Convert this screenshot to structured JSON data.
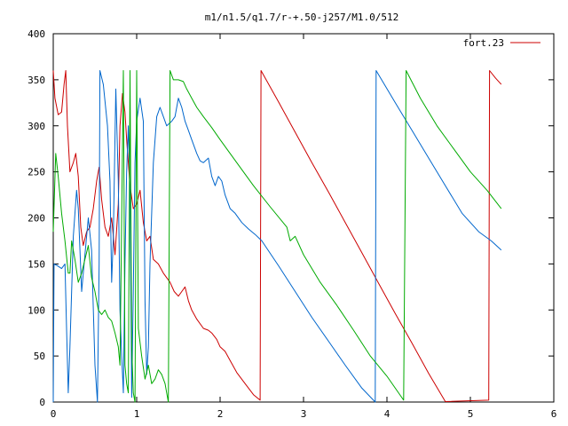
{
  "chart_data": {
    "type": "line",
    "title": "m1/n1.5/q1.7/r-+.50-j257/M1.0/512",
    "xlabel": "",
    "ylabel": "",
    "xlim": [
      0,
      6
    ],
    "ylim": [
      0,
      400
    ],
    "xticks": [
      0,
      1,
      2,
      3,
      4,
      5,
      6
    ],
    "yticks": [
      0,
      50,
      100,
      150,
      200,
      250,
      300,
      350,
      400
    ],
    "grid": false,
    "legend": {
      "position": "top-right",
      "entries": [
        "fort.23"
      ]
    },
    "series": [
      {
        "name": "fort.23",
        "color": "#cc0000",
        "points": [
          [
            0,
            360
          ],
          [
            0.02,
            330
          ],
          [
            0.06,
            312
          ],
          [
            0.1,
            315
          ],
          [
            0.13,
            345
          ],
          [
            0.15,
            360
          ],
          [
            0.17,
            300
          ],
          [
            0.2,
            250
          ],
          [
            0.24,
            260
          ],
          [
            0.27,
            270
          ],
          [
            0.3,
            245
          ],
          [
            0.33,
            190
          ],
          [
            0.36,
            170
          ],
          [
            0.4,
            185
          ],
          [
            0.44,
            190
          ],
          [
            0.48,
            210
          ],
          [
            0.52,
            240
          ],
          [
            0.55,
            255
          ],
          [
            0.58,
            220
          ],
          [
            0.62,
            190
          ],
          [
            0.66,
            180
          ],
          [
            0.7,
            200
          ],
          [
            0.74,
            160
          ],
          [
            0.78,
            215
          ],
          [
            0.8,
            300
          ],
          [
            0.83,
            335
          ],
          [
            0.86,
            315
          ],
          [
            0.88,
            285
          ],
          [
            0.92,
            235
          ],
          [
            0.96,
            210
          ],
          [
            1.0,
            215
          ],
          [
            1.04,
            230
          ],
          [
            1.08,
            195
          ],
          [
            1.12,
            175
          ],
          [
            1.16,
            180
          ],
          [
            1.2,
            155
          ],
          [
            1.26,
            150
          ],
          [
            1.32,
            140
          ],
          [
            1.4,
            130
          ],
          [
            1.45,
            120
          ],
          [
            1.5,
            115
          ],
          [
            1.54,
            120
          ],
          [
            1.58,
            125
          ],
          [
            1.62,
            110
          ],
          [
            1.66,
            100
          ],
          [
            1.72,
            90
          ],
          [
            1.8,
            80
          ],
          [
            1.86,
            78
          ],
          [
            1.9,
            75
          ],
          [
            1.96,
            68
          ],
          [
            2.0,
            60
          ],
          [
            2.06,
            55
          ],
          [
            2.12,
            45
          ],
          [
            2.2,
            32
          ],
          [
            2.3,
            20
          ],
          [
            2.4,
            8
          ],
          [
            2.48,
            2
          ],
          [
            2.49,
            360
          ],
          [
            2.7,
            326
          ],
          [
            2.9,
            293
          ],
          [
            3.1,
            260
          ],
          [
            3.3,
            228
          ],
          [
            3.5,
            195
          ],
          [
            3.7,
            162
          ],
          [
            3.9,
            129
          ],
          [
            4.1,
            96
          ],
          [
            4.3,
            64
          ],
          [
            4.5,
            31
          ],
          [
            4.7,
            0.5
          ],
          [
            5.22,
            2
          ],
          [
            5.23,
            360
          ],
          [
            5.3,
            352
          ],
          [
            5.37,
            345
          ]
        ]
      },
      {
        "name": "",
        "color": "#0066cc",
        "points": [
          [
            0,
            0
          ],
          [
            0.01,
            150
          ],
          [
            0.05,
            148
          ],
          [
            0.1,
            145
          ],
          [
            0.14,
            150
          ],
          [
            0.16,
            80
          ],
          [
            0.18,
            10
          ],
          [
            0.2,
            60
          ],
          [
            0.24,
            180
          ],
          [
            0.28,
            230
          ],
          [
            0.3,
            210
          ],
          [
            0.34,
            120
          ],
          [
            0.38,
            160
          ],
          [
            0.42,
            200
          ],
          [
            0.46,
            165
          ],
          [
            0.5,
            40
          ],
          [
            0.53,
            0
          ],
          [
            0.55,
            150
          ],
          [
            0.56,
            360
          ],
          [
            0.6,
            345
          ],
          [
            0.65,
            300
          ],
          [
            0.68,
            240
          ],
          [
            0.7,
            130
          ],
          [
            0.72,
            180
          ],
          [
            0.75,
            340
          ],
          [
            0.78,
            240
          ],
          [
            0.8,
            100
          ],
          [
            0.82,
            50
          ],
          [
            0.84,
            10
          ],
          [
            0.86,
            150
          ],
          [
            0.88,
            250
          ],
          [
            0.9,
            300
          ],
          [
            0.92,
            230
          ],
          [
            0.94,
            5
          ],
          [
            0.96,
            120
          ],
          [
            0.98,
            260
          ],
          [
            1.0,
            305
          ],
          [
            1.04,
            330
          ],
          [
            1.08,
            305
          ],
          [
            1.1,
            110
          ],
          [
            1.12,
            30
          ],
          [
            1.14,
            60
          ],
          [
            1.16,
            150
          ],
          [
            1.2,
            260
          ],
          [
            1.24,
            310
          ],
          [
            1.28,
            320
          ],
          [
            1.32,
            310
          ],
          [
            1.36,
            300
          ],
          [
            1.42,
            305
          ],
          [
            1.46,
            310
          ],
          [
            1.5,
            330
          ],
          [
            1.54,
            320
          ],
          [
            1.58,
            305
          ],
          [
            1.62,
            295
          ],
          [
            1.66,
            285
          ],
          [
            1.72,
            270
          ],
          [
            1.76,
            262
          ],
          [
            1.8,
            260
          ],
          [
            1.86,
            265
          ],
          [
            1.9,
            245
          ],
          [
            1.94,
            235
          ],
          [
            1.98,
            245
          ],
          [
            2.02,
            240
          ],
          [
            2.06,
            225
          ],
          [
            2.12,
            210
          ],
          [
            2.18,
            205
          ],
          [
            2.26,
            195
          ],
          [
            2.34,
            188
          ],
          [
            2.42,
            182
          ],
          [
            2.5,
            175
          ],
          [
            2.7,
            148
          ],
          [
            2.9,
            120
          ],
          [
            3.1,
            92
          ],
          [
            3.3,
            66
          ],
          [
            3.5,
            40
          ],
          [
            3.7,
            15
          ],
          [
            3.86,
            0
          ],
          [
            3.87,
            360
          ],
          [
            4.1,
            325
          ],
          [
            4.3,
            295
          ],
          [
            4.5,
            265
          ],
          [
            4.7,
            235
          ],
          [
            4.9,
            205
          ],
          [
            5.1,
            185
          ],
          [
            5.25,
            175
          ],
          [
            5.37,
            165
          ]
        ]
      },
      {
        "name": "",
        "color": "#00aa00",
        "points": [
          [
            0,
            185
          ],
          [
            0.03,
            270
          ],
          [
            0.06,
            245
          ],
          [
            0.1,
            205
          ],
          [
            0.14,
            175
          ],
          [
            0.18,
            140
          ],
          [
            0.2,
            140
          ],
          [
            0.22,
            175
          ],
          [
            0.26,
            155
          ],
          [
            0.3,
            130
          ],
          [
            0.34,
            140
          ],
          [
            0.38,
            155
          ],
          [
            0.42,
            170
          ],
          [
            0.46,
            135
          ],
          [
            0.5,
            120
          ],
          [
            0.54,
            100
          ],
          [
            0.58,
            95
          ],
          [
            0.62,
            100
          ],
          [
            0.66,
            92
          ],
          [
            0.7,
            88
          ],
          [
            0.74,
            75
          ],
          [
            0.78,
            60
          ],
          [
            0.8,
            40
          ],
          [
            0.82,
            200
          ],
          [
            0.84,
            360
          ],
          [
            0.86,
            40
          ],
          [
            0.88,
            20
          ],
          [
            0.9,
            10
          ],
          [
            0.92,
            360
          ],
          [
            0.94,
            60
          ],
          [
            0.96,
            10
          ],
          [
            0.98,
            0
          ],
          [
            1.0,
            360
          ],
          [
            1.02,
            80
          ],
          [
            1.06,
            50
          ],
          [
            1.1,
            25
          ],
          [
            1.14,
            40
          ],
          [
            1.18,
            20
          ],
          [
            1.22,
            25
          ],
          [
            1.26,
            35
          ],
          [
            1.3,
            30
          ],
          [
            1.34,
            20
          ],
          [
            1.36,
            10
          ],
          [
            1.38,
            0
          ],
          [
            1.4,
            360
          ],
          [
            1.44,
            350
          ],
          [
            1.5,
            350
          ],
          [
            1.56,
            348
          ],
          [
            1.6,
            340
          ],
          [
            1.66,
            330
          ],
          [
            1.72,
            320
          ],
          [
            1.8,
            310
          ],
          [
            1.9,
            298
          ],
          [
            2.0,
            285
          ],
          [
            2.2,
            260
          ],
          [
            2.4,
            235
          ],
          [
            2.6,
            212
          ],
          [
            2.8,
            190
          ],
          [
            2.84,
            175
          ],
          [
            2.9,
            180
          ],
          [
            3.0,
            160
          ],
          [
            3.2,
            130
          ],
          [
            3.4,
            105
          ],
          [
            3.6,
            78
          ],
          [
            3.8,
            50
          ],
          [
            4.0,
            28
          ],
          [
            4.2,
            2
          ],
          [
            4.23,
            360
          ],
          [
            4.4,
            330
          ],
          [
            4.6,
            300
          ],
          [
            4.8,
            275
          ],
          [
            5.0,
            250
          ],
          [
            5.2,
            230
          ],
          [
            5.37,
            210
          ]
        ]
      }
    ]
  }
}
